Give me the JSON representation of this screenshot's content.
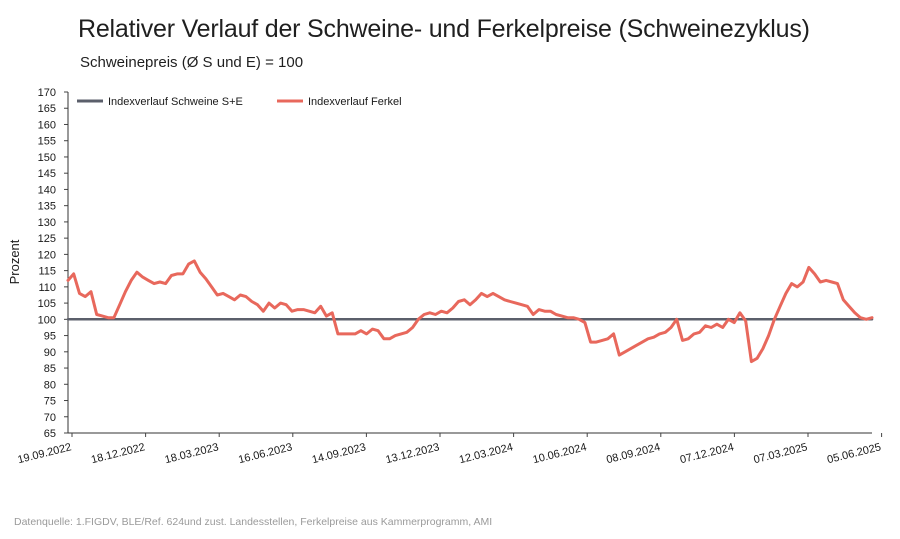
{
  "chart_data": {
    "type": "line",
    "title": "Relativer Verlauf der Schweine- und Ferkelpreise (Schweinezyklus)",
    "subtitle": "Schweinepreis (Ø S und E) = 100",
    "ylabel": "Prozent",
    "xlabel": "",
    "ylim": [
      65,
      170
    ],
    "yticks": [
      65,
      70,
      75,
      80,
      85,
      90,
      95,
      100,
      105,
      110,
      115,
      120,
      125,
      130,
      135,
      140,
      145,
      150,
      155,
      160,
      165,
      170
    ],
    "x_tick_labels": [
      "19.09.2022",
      "18.12.2022",
      "18.03.2023",
      "16.06.2023",
      "14.09.2023",
      "13.12.2023",
      "12.03.2024",
      "10.06.2024",
      "08.09.2024",
      "07.12.2024",
      "07.03.2025",
      "05.06.2025"
    ],
    "grid": false,
    "legend_position": "top-left",
    "series": [
      {
        "name": "Indexverlauf Schweine S+E",
        "color": "#5b5f6b",
        "values": [
          100,
          100
        ]
      },
      {
        "name": "Indexverlauf Ferkel",
        "color": "#e8685c",
        "values": [
          112,
          114,
          108,
          107,
          108.5,
          101.5,
          101,
          100.5,
          100.5,
          104.5,
          108.5,
          112,
          114.5,
          113,
          112,
          111,
          111.5,
          111,
          113.5,
          114,
          114,
          117,
          118,
          114.5,
          112.5,
          110,
          107.5,
          108,
          107,
          106,
          107.5,
          107,
          105.5,
          104.5,
          102.5,
          105,
          103.5,
          105,
          104.5,
          102.5,
          103,
          103,
          102.5,
          102,
          104,
          101,
          102,
          95.5,
          95.5,
          95.5,
          95.5,
          96.5,
          95.5,
          97,
          96.5,
          94,
          94,
          95,
          95.5,
          96,
          97.5,
          100,
          101.5,
          102,
          101.5,
          102.5,
          102,
          103.5,
          105.5,
          106,
          104.5,
          106,
          108,
          107,
          108,
          107,
          106,
          105.5,
          105,
          104.5,
          104,
          101.5,
          103,
          102.5,
          102.5,
          101.5,
          101,
          100.5,
          100.5,
          100,
          99,
          93,
          93,
          93.5,
          94,
          95.5,
          89,
          90,
          91,
          92,
          93,
          94,
          94.5,
          95.5,
          96,
          97.5,
          100,
          93.5,
          94,
          95.5,
          96,
          98,
          97.5,
          98.5,
          97.5,
          100,
          99,
          102,
          99.5,
          87,
          88,
          91,
          95,
          100,
          104,
          108,
          111,
          110,
          111.5,
          116,
          114,
          111.5,
          112,
          111.5,
          111,
          106,
          104,
          102,
          100.5,
          100,
          100.5
        ]
      }
    ]
  },
  "source": "Datenquelle: 1.FIGDV, BLE/Ref. 624und zust. Landesstellen, Ferkelpreise aus Kammerprogramm, AMI"
}
